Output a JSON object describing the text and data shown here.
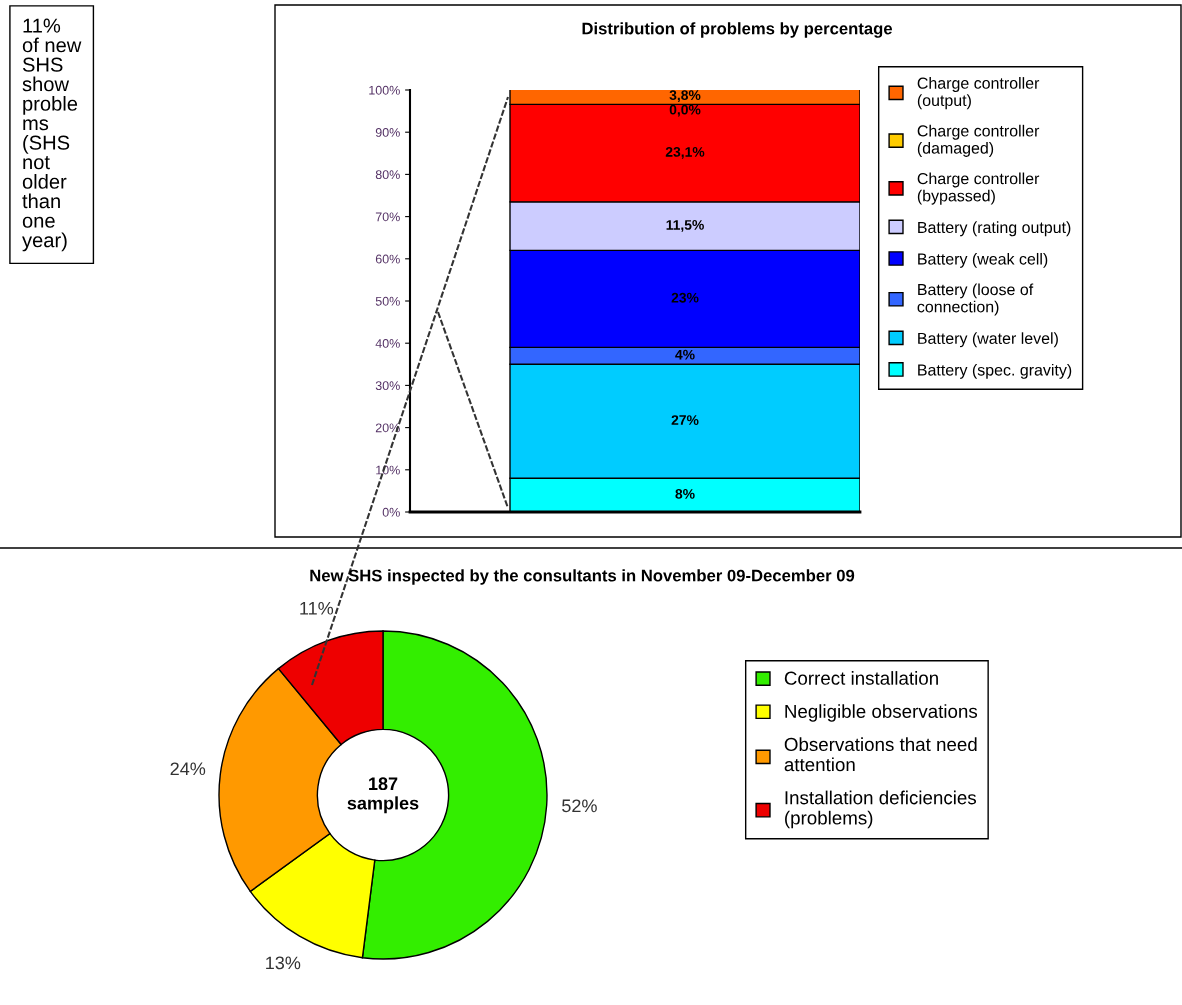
{
  "chart_data": [
    {
      "type": "bar",
      "title": "Distribution of problems by percentage",
      "stacked": true,
      "categories": [
        null
      ],
      "legend": "right",
      "grid": false,
      "ylim": [
        0,
        100
      ],
      "yticks": [
        {
          "value": 0,
          "label": "0%"
        },
        {
          "value": 10,
          "label": "10%"
        },
        {
          "value": 20,
          "label": "20%"
        },
        {
          "value": 30,
          "label": "30%"
        },
        {
          "value": 40,
          "label": "40%"
        },
        {
          "value": 50,
          "label": "50%"
        },
        {
          "value": 60,
          "label": "60%"
        },
        {
          "value": 70,
          "label": "70%"
        },
        {
          "value": 80,
          "label": "80%"
        },
        {
          "value": 90,
          "label": "90%"
        },
        {
          "value": 100,
          "label": "100%"
        }
      ],
      "annotations": [
        "11%\nof new\nSHS\nshow\nproble\nms\n(SHS\nnot\nolder\nthan\none\nyear)"
      ],
      "series": [
        {
          "name": "Battery (spec. gravity)",
          "color": "#00ffff",
          "values": [
            8
          ],
          "value_labels": [
            "8%"
          ]
        },
        {
          "name": "Battery (water level)",
          "color": "#00ccff",
          "values": [
            27
          ],
          "value_labels": [
            "27%"
          ]
        },
        {
          "name": "Battery (loose of\nconnection)",
          "color": "#3366ff",
          "values": [
            4
          ],
          "value_labels": [
            "4%"
          ]
        },
        {
          "name": "Battery (weak cell)",
          "color": "#0000ff",
          "values": [
            23
          ],
          "value_labels": [
            "23%"
          ]
        },
        {
          "name": "Battery (rating output)",
          "color": "#ccccff",
          "values": [
            11.5
          ],
          "value_labels": [
            "11,5%"
          ]
        },
        {
          "name": "Charge controller\n(bypassed)",
          "color": "#ff0000",
          "values": [
            23.1
          ],
          "value_labels": [
            "23,1%"
          ]
        },
        {
          "name": "Charge controller\n(damaged)",
          "color": "#ffcc00",
          "values": [
            0.0
          ],
          "value_labels": [
            "0,0%"
          ]
        },
        {
          "name": "Charge controller\n(output)",
          "color": "#ff6600",
          "values": [
            3.8
          ],
          "value_labels": [
            "3,8%"
          ]
        }
      ]
    },
    {
      "type": "donut",
      "title": "New SHS inspected by the consultants in November 09-December 09",
      "legend": "right",
      "data_labels": true,
      "categories": [
        "Correct installation",
        "Negligible observations",
        "Observations that need\nattention",
        "Installation deficiencies\n(problems)"
      ],
      "values": [
        52,
        13,
        24,
        11
      ],
      "colors": [
        "#33ee00",
        "#ffff00",
        "#ff9900",
        "#ee0000"
      ],
      "value_labels": [
        "52%",
        "13%",
        "24%",
        "11%"
      ],
      "annotations": [
        "187\nsamples"
      ]
    }
  ]
}
